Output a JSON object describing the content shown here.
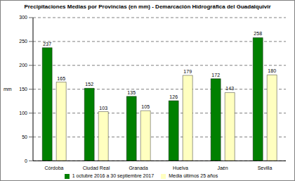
{
  "chart_data": {
    "type": "bar",
    "title": "Precipitaciones Medias por Provincias (en mm) - Demarcación Hidrográfica del Guadalquivir",
    "ylabel": "mm",
    "categories": [
      "Córdoba",
      "Ciudad Real",
      "Granada",
      "Huelva",
      "Jaén",
      "Sevilla"
    ],
    "series": [
      {
        "name": "1 octubre 2016 a 30 septiembre 2017",
        "color": "#008000",
        "values": [
          237,
          152,
          135,
          126,
          172,
          258
        ]
      },
      {
        "name": "Media últimos 25 años",
        "color": "#ffffc0",
        "values": [
          165,
          103,
          105,
          179,
          143,
          180
        ]
      }
    ],
    "ylim": [
      0,
      300
    ],
    "yticks": [
      0,
      50,
      100,
      150,
      200,
      250,
      300
    ],
    "grid": true,
    "legend": "bottom",
    "data_labels": true
  }
}
